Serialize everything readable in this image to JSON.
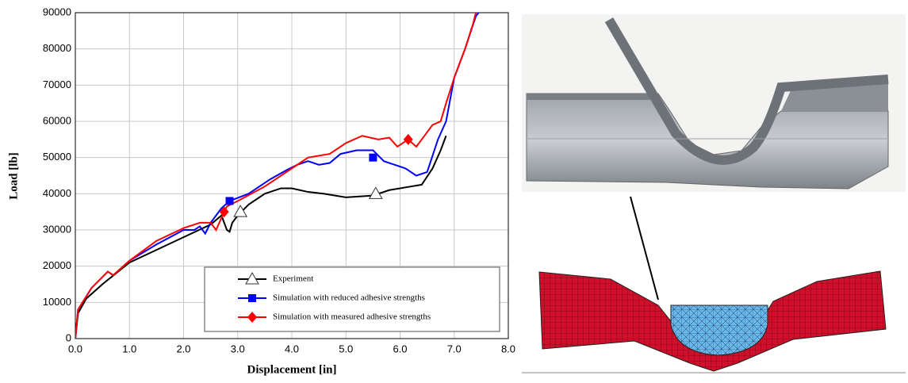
{
  "chart_data": {
    "type": "line",
    "xlabel": "Displacement [in]",
    "ylabel": "Load [lb]",
    "xlim": [
      0,
      8
    ],
    "ylim": [
      0,
      90000
    ],
    "xticks": [
      {
        "value": 0,
        "label": "0.0"
      },
      {
        "value": 1,
        "label": "1.0"
      },
      {
        "value": 2,
        "label": "2.0"
      },
      {
        "value": 3,
        "label": "3.0"
      },
      {
        "value": 4,
        "label": "4.0"
      },
      {
        "value": 5,
        "label": "5.0"
      },
      {
        "value": 6,
        "label": "6.0"
      },
      {
        "value": 7,
        "label": "7.0"
      },
      {
        "value": 8,
        "label": "8.0"
      }
    ],
    "yticks": [
      0,
      10000,
      20000,
      30000,
      40000,
      50000,
      60000,
      70000,
      80000,
      90000
    ],
    "grid": true,
    "legend": "lower right",
    "series": [
      {
        "name": "Experiment",
        "color": "#000000",
        "marker": "triangle",
        "x": [
          0,
          0.05,
          0.2,
          0.5,
          1.0,
          1.5,
          2.0,
          2.5,
          2.7,
          2.8,
          2.85,
          2.9,
          3.0,
          3.2,
          3.5,
          3.8,
          4.0,
          4.3,
          4.6,
          5.0,
          5.5,
          5.8,
          6.2,
          6.4,
          6.6,
          6.75,
          6.85
        ],
        "values": [
          0,
          7000,
          11000,
          15000,
          21000,
          24500,
          28000,
          31500,
          34000,
          30000,
          29500,
          32000,
          34000,
          37000,
          40000,
          41500,
          41500,
          40500,
          40000,
          39000,
          39500,
          41000,
          42000,
          42500,
          47000,
          52000,
          56000
        ],
        "marker_x": [
          3.05,
          5.55
        ],
        "marker_values": [
          35000,
          40000
        ]
      },
      {
        "name": "Simulation with reduced adhesive strengths",
        "color": "#0000ff",
        "marker": "square",
        "x": [
          0,
          0.05,
          0.3,
          0.6,
          0.7,
          1.0,
          1.5,
          2.0,
          2.2,
          2.3,
          2.4,
          2.5,
          2.7,
          2.85,
          3.2,
          3.6,
          3.9,
          4.1,
          4.3,
          4.5,
          4.7,
          4.9,
          5.2,
          5.5,
          5.7,
          5.9,
          6.1,
          6.3,
          6.5,
          6.7,
          6.85,
          7.0,
          7.2,
          7.4,
          7.45
        ],
        "values": [
          0,
          8000,
          14000,
          18500,
          17500,
          21500,
          26000,
          30000,
          30000,
          31000,
          29000,
          32000,
          36000,
          38000,
          40000,
          44000,
          46500,
          48000,
          49000,
          48000,
          48500,
          51000,
          52000,
          52000,
          49000,
          48000,
          47000,
          45000,
          46000,
          55000,
          60000,
          72000,
          80000,
          89000,
          90000
        ],
        "marker_x": [
          2.85,
          5.5
        ],
        "marker_values": [
          38000,
          50000
        ]
      },
      {
        "name": "Simulation with measured adhesive strengths",
        "color": "#ff0000",
        "marker": "diamond",
        "x": [
          0,
          0.05,
          0.3,
          0.6,
          0.7,
          1.0,
          1.5,
          2.0,
          2.3,
          2.5,
          2.6,
          2.75,
          2.8,
          3.0,
          3.5,
          4.0,
          4.3,
          4.7,
          5.0,
          5.3,
          5.6,
          5.8,
          5.95,
          6.15,
          6.3,
          6.5,
          6.6,
          6.75,
          6.85,
          7.0,
          7.2,
          7.35,
          7.4
        ],
        "values": [
          0,
          8000,
          14000,
          18500,
          17500,
          21500,
          27000,
          30500,
          32000,
          32000,
          30000,
          35000,
          36500,
          38000,
          42000,
          47000,
          50000,
          51000,
          54000,
          56000,
          55000,
          55500,
          53000,
          55000,
          53000,
          57000,
          59000,
          60000,
          65000,
          72000,
          80000,
          87000,
          90000
        ],
        "marker_x": [
          2.75,
          6.15
        ],
        "marker_values": [
          35000,
          55000
        ]
      }
    ]
  }
}
